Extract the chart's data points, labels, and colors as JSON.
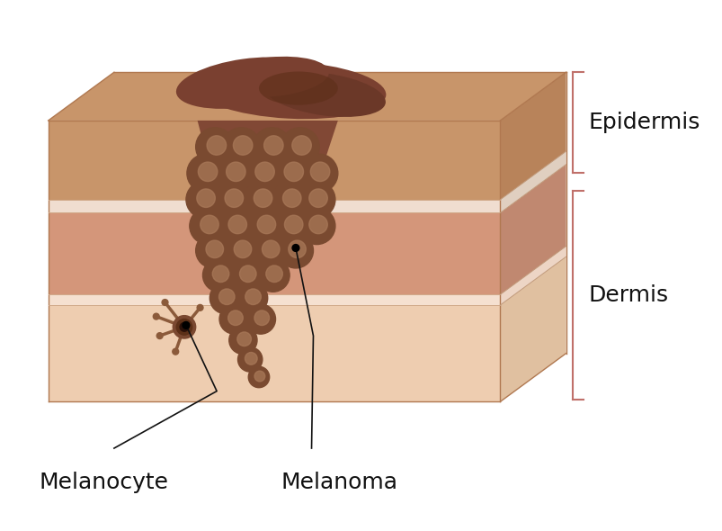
{
  "bg_color": "#ffffff",
  "epidermis_front_color": "#C8956A",
  "epidermis_sep_color": "#F0DDD0",
  "dermis_front_color": "#D4967A",
  "dermis_sep_color": "#F0DDD0",
  "deep_dermis_color": "#EEC9B0",
  "right_epid_color": "#B8835A",
  "right_derm_color": "#C08870",
  "right_deep_color": "#DEB898",
  "top_face_color": "#C8956A",
  "melanoma_base": "#7A4A30",
  "melanoma_spot": "#A87858",
  "melanoma_surface_color": "#7A4030",
  "melanocyte_body": "#8B5A3A",
  "melanocyte_nucleus": "#3A1A08",
  "label_color": "#111111",
  "line_color": "#111111",
  "bracket_color": "#C0706A",
  "epidermis_label": "Epidermis",
  "dermis_label": "Dermis",
  "melanocyte_label": "Melanocyte",
  "melanoma_label": "Melanoma",
  "font_size": 18
}
